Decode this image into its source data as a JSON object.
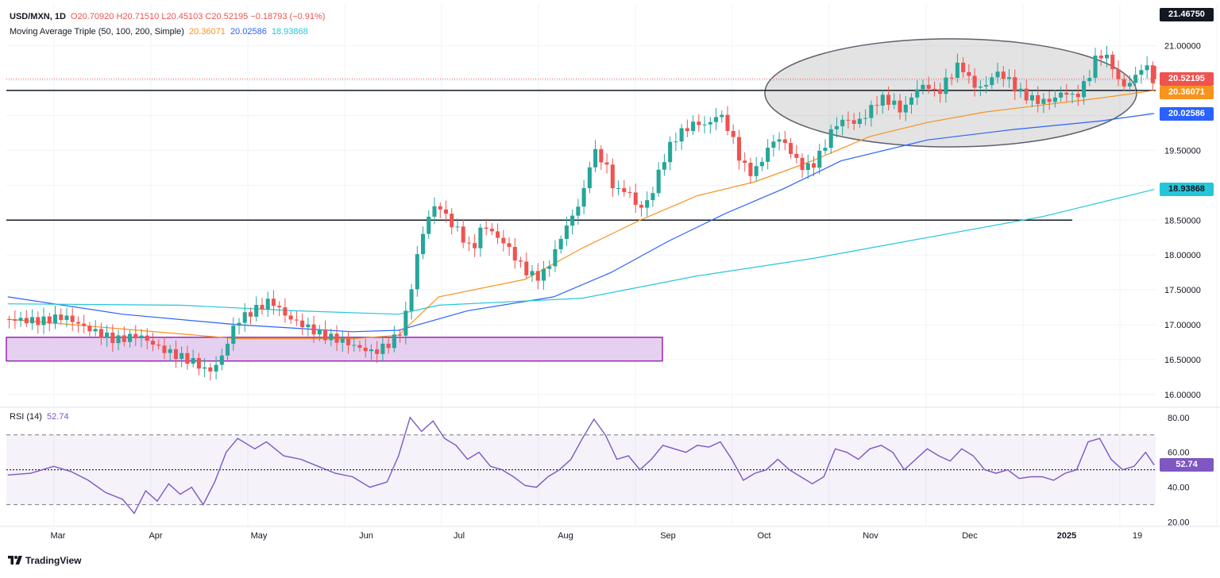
{
  "header": {
    "symbol": "USD/MXN, 1D",
    "ohlc": "O20.70920 H20.71510 L20.45103 C20.52195 −0.18793 (−0.91%)",
    "ma_label": "Moving Average Triple (50, 100, 200, Simple)",
    "ma50_value": "20.36071",
    "ma100_value": "20.02586",
    "ma200_value": "18.93868",
    "rsi_label": "RSI (14)",
    "rsi_value": "52.74"
  },
  "price_badges": {
    "top": "21.46750",
    "last": "20.52195",
    "ma50": "20.36071",
    "ma100": "20.02586",
    "ma200": "18.93868",
    "rsi": "52.74"
  },
  "brand": "TradingView",
  "colors": {
    "up": "#26a69a",
    "down": "#ef5350",
    "ma50": "#f7931e",
    "ma100": "#2962ff",
    "ma200": "#26c6da",
    "rsi": "#7e57c2",
    "zone_fill": "#e5d0ef",
    "zone_border": "#9c27b0"
  },
  "chart_data": {
    "type": "candlestick",
    "title": "USD/MXN, 1D",
    "price_axis": {
      "range": [
        15.85,
        21.6
      ],
      "ticks": [
        16.0,
        16.5,
        17.0,
        17.5,
        18.0,
        18.5,
        19.0,
        19.5,
        20.0,
        20.5,
        21.0
      ],
      "tick_labels": [
        "16.00000",
        "16.50000",
        "17.00000",
        "17.50000",
        "18.00000",
        "18.50000",
        "19.00000",
        "19.50000",
        "20.00000",
        "20.50000",
        "21.00000"
      ]
    },
    "time_axis": {
      "labels": [
        "Mar",
        "Apr",
        "May",
        "Jun",
        "Jul",
        "Aug",
        "Sep",
        "Oct",
        "Nov",
        "Dec",
        "2025",
        "19"
      ]
    },
    "price_path": [
      [
        0,
        17.08
      ],
      [
        12,
        17.05
      ],
      [
        20,
        17.12
      ],
      [
        28,
        16.95
      ],
      [
        38,
        16.78
      ],
      [
        46,
        16.85
      ],
      [
        54,
        16.65
      ],
      [
        60,
        16.55
      ],
      [
        66,
        16.45
      ],
      [
        70,
        16.32
      ],
      [
        74,
        16.45
      ],
      [
        80,
        17.05
      ],
      [
        86,
        17.2
      ],
      [
        92,
        17.35
      ],
      [
        98,
        17.1
      ],
      [
        104,
        16.98
      ],
      [
        110,
        16.85
      ],
      [
        116,
        16.78
      ],
      [
        122,
        16.68
      ],
      [
        128,
        16.6
      ],
      [
        134,
        16.75
      ],
      [
        138,
        16.95
      ],
      [
        141,
        17.55
      ],
      [
        144,
        18.2
      ],
      [
        147,
        18.55
      ],
      [
        150,
        18.75
      ],
      [
        153,
        18.55
      ],
      [
        158,
        18.3
      ],
      [
        162,
        18.05
      ],
      [
        166,
        18.45
      ],
      [
        170,
        18.28
      ],
      [
        174,
        18.15
      ],
      [
        178,
        17.9
      ],
      [
        182,
        17.72
      ],
      [
        186,
        17.68
      ],
      [
        190,
        17.95
      ],
      [
        194,
        18.35
      ],
      [
        198,
        18.62
      ],
      [
        201,
        18.92
      ],
      [
        204,
        19.5
      ],
      [
        208,
        19.35
      ],
      [
        212,
        18.9
      ],
      [
        216,
        18.95
      ],
      [
        220,
        18.65
      ],
      [
        224,
        18.8
      ],
      [
        228,
        19.3
      ],
      [
        232,
        19.65
      ],
      [
        236,
        19.8
      ],
      [
        240,
        19.9
      ],
      [
        244,
        19.85
      ],
      [
        248,
        20.05
      ],
      [
        252,
        19.75
      ],
      [
        256,
        19.3
      ],
      [
        260,
        19.15
      ],
      [
        264,
        19.45
      ],
      [
        268,
        19.7
      ],
      [
        272,
        19.55
      ],
      [
        276,
        19.28
      ],
      [
        280,
        19.25
      ],
      [
        284,
        19.5
      ],
      [
        288,
        19.85
      ],
      [
        292,
        19.95
      ],
      [
        296,
        19.88
      ],
      [
        300,
        20.05
      ],
      [
        304,
        20.25
      ],
      [
        308,
        20.2
      ],
      [
        312,
        20.05
      ],
      [
        316,
        20.35
      ],
      [
        320,
        20.45
      ],
      [
        324,
        20.3
      ],
      [
        328,
        20.55
      ],
      [
        332,
        20.75
      ],
      [
        336,
        20.45
      ],
      [
        340,
        20.38
      ],
      [
        344,
        20.62
      ],
      [
        348,
        20.55
      ],
      [
        352,
        20.35
      ],
      [
        356,
        20.25
      ],
      [
        360,
        20.2
      ],
      [
        364,
        20.22
      ],
      [
        368,
        20.35
      ],
      [
        372,
        20.25
      ],
      [
        376,
        20.5
      ],
      [
        380,
        20.9
      ],
      [
        384,
        20.8
      ],
      [
        388,
        20.4
      ],
      [
        392,
        20.5
      ],
      [
        396,
        20.75
      ],
      [
        399,
        20.52
      ]
    ],
    "last_candle": {
      "open": 20.7092,
      "high": 20.7151,
      "low": 20.45103,
      "close": 20.52195
    },
    "moving_averages": [
      {
        "name": "MA 50",
        "value": 20.36071,
        "points": [
          [
            0,
            17.08
          ],
          [
            80,
            16.8
          ],
          [
            120,
            16.8
          ],
          [
            136,
            16.85
          ],
          [
            150,
            17.4
          ],
          [
            180,
            17.65
          ],
          [
            200,
            18.1
          ],
          [
            220,
            18.5
          ],
          [
            240,
            18.85
          ],
          [
            260,
            19.05
          ],
          [
            280,
            19.35
          ],
          [
            300,
            19.7
          ],
          [
            320,
            19.9
          ],
          [
            340,
            20.05
          ],
          [
            360,
            20.15
          ],
          [
            380,
            20.25
          ],
          [
            399,
            20.36
          ]
        ]
      },
      {
        "name": "MA 100",
        "value": 20.02586,
        "points": [
          [
            0,
            17.4
          ],
          [
            40,
            17.15
          ],
          [
            80,
            17.0
          ],
          [
            120,
            16.9
          ],
          [
            136,
            16.92
          ],
          [
            160,
            17.2
          ],
          [
            190,
            17.4
          ],
          [
            210,
            17.75
          ],
          [
            230,
            18.2
          ],
          [
            250,
            18.6
          ],
          [
            270,
            18.95
          ],
          [
            290,
            19.35
          ],
          [
            320,
            19.65
          ],
          [
            350,
            19.8
          ],
          [
            380,
            19.92
          ],
          [
            399,
            20.03
          ]
        ]
      },
      {
        "name": "MA 200",
        "value": 18.93868,
        "points": [
          [
            0,
            17.3
          ],
          [
            60,
            17.28
          ],
          [
            100,
            17.2
          ],
          [
            136,
            17.15
          ],
          [
            150,
            17.28
          ],
          [
            200,
            17.38
          ],
          [
            240,
            17.7
          ],
          [
            280,
            17.95
          ],
          [
            320,
            18.25
          ],
          [
            360,
            18.55
          ],
          [
            399,
            18.94
          ]
        ]
      }
    ],
    "horizontal_levels": [
      {
        "price": 20.36
      },
      {
        "price": 18.5
      }
    ],
    "last_price_line": 20.52195,
    "zones": [
      {
        "price_top": 16.82,
        "price_bottom": 16.48
      }
    ],
    "ellipse_price_range": [
      19.55,
      21.1
    ],
    "rsi": {
      "period": 14,
      "value": 52.74,
      "axis_range": [
        18,
        84
      ],
      "ticks": [
        20,
        40,
        60,
        80
      ],
      "tick_labels": [
        "20.00",
        "40.00",
        "60.00",
        "80.00"
      ],
      "levels": {
        "upper": 70,
        "middle": 50,
        "lower": 30
      },
      "points": [
        [
          0,
          47
        ],
        [
          8,
          48
        ],
        [
          16,
          52
        ],
        [
          22,
          49
        ],
        [
          28,
          44
        ],
        [
          34,
          37
        ],
        [
          40,
          33
        ],
        [
          44,
          25
        ],
        [
          48,
          38
        ],
        [
          52,
          32
        ],
        [
          56,
          42
        ],
        [
          60,
          36
        ],
        [
          64,
          40
        ],
        [
          68,
          30
        ],
        [
          72,
          43
        ],
        [
          76,
          60
        ],
        [
          80,
          68
        ],
        [
          86,
          62
        ],
        [
          90,
          66
        ],
        [
          96,
          58
        ],
        [
          102,
          56
        ],
        [
          108,
          52
        ],
        [
          114,
          48
        ],
        [
          120,
          46
        ],
        [
          126,
          40
        ],
        [
          132,
          43
        ],
        [
          136,
          58
        ],
        [
          140,
          80
        ],
        [
          144,
          72
        ],
        [
          148,
          78
        ],
        [
          152,
          68
        ],
        [
          156,
          64
        ],
        [
          160,
          56
        ],
        [
          164,
          60
        ],
        [
          168,
          52
        ],
        [
          172,
          50
        ],
        [
          176,
          46
        ],
        [
          180,
          41
        ],
        [
          184,
          40
        ],
        [
          188,
          46
        ],
        [
          192,
          50
        ],
        [
          196,
          56
        ],
        [
          200,
          68
        ],
        [
          204,
          79
        ],
        [
          208,
          70
        ],
        [
          212,
          56
        ],
        [
          216,
          58
        ],
        [
          220,
          50
        ],
        [
          224,
          56
        ],
        [
          228,
          64
        ],
        [
          232,
          62
        ],
        [
          236,
          60
        ],
        [
          240,
          64
        ],
        [
          244,
          63
        ],
        [
          248,
          66
        ],
        [
          252,
          56
        ],
        [
          256,
          44
        ],
        [
          260,
          48
        ],
        [
          264,
          50
        ],
        [
          268,
          56
        ],
        [
          272,
          50
        ],
        [
          276,
          46
        ],
        [
          280,
          42
        ],
        [
          284,
          46
        ],
        [
          288,
          62
        ],
        [
          292,
          60
        ],
        [
          296,
          56
        ],
        [
          300,
          62
        ],
        [
          304,
          64
        ],
        [
          308,
          60
        ],
        [
          312,
          50
        ],
        [
          316,
          56
        ],
        [
          320,
          62
        ],
        [
          324,
          58
        ],
        [
          328,
          55
        ],
        [
          332,
          62
        ],
        [
          336,
          58
        ],
        [
          340,
          50
        ],
        [
          344,
          48
        ],
        [
          348,
          50
        ],
        [
          352,
          45
        ],
        [
          356,
          46
        ],
        [
          360,
          46
        ],
        [
          364,
          44
        ],
        [
          368,
          48
        ],
        [
          372,
          50
        ],
        [
          376,
          66
        ],
        [
          380,
          68
        ],
        [
          384,
          56
        ],
        [
          388,
          50
        ],
        [
          392,
          52
        ],
        [
          396,
          60
        ],
        [
          399,
          52.74
        ]
      ]
    }
  }
}
